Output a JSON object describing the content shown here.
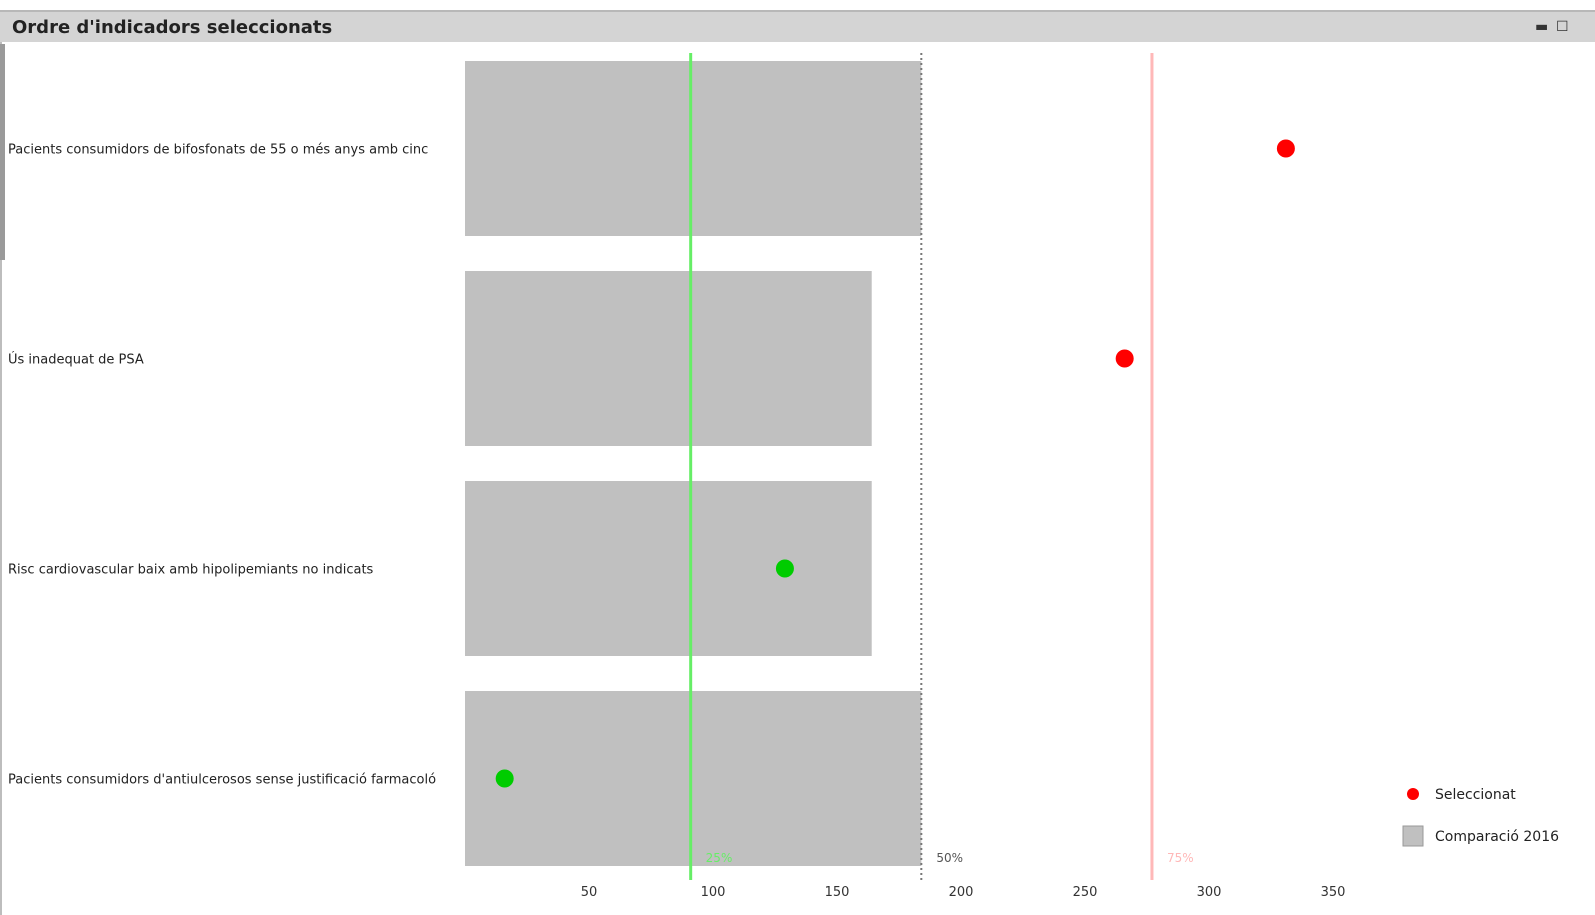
{
  "window": {
    "title": "Ordre d'indicadors seleccionats",
    "minimize_icon": "minimize-icon",
    "maximize_icon": "maximize-icon"
  },
  "chart_data": {
    "type": "bar",
    "orientation": "horizontal",
    "title": "",
    "xlabel": "",
    "ylabel": "",
    "xlim": [
      0,
      400
    ],
    "xticks": [
      50,
      100,
      150,
      200,
      250,
      300,
      350
    ],
    "grid": false,
    "legend_position": "bottom-right",
    "categories": [
      "Pacients consumidors de bifosfonats de 55 o més anys amb cinc",
      "Ús inadequat de PSA",
      "Risc cardiovascular baix amb hipolipemiants no indicats",
      "Pacients consumidors d'antiulcerosos sense justificació farmacoló"
    ],
    "series": [
      {
        "name": "Comparació 2016",
        "kind": "bar",
        "color": "#c0c0c0",
        "values": [
          184,
          164,
          164,
          184
        ]
      },
      {
        "name": "Seleccionat",
        "kind": "point",
        "values": [
          331,
          266,
          129,
          16
        ],
        "colors": [
          "#ff0000",
          "#ff0000",
          "#00cc00",
          "#00cc00"
        ]
      }
    ],
    "reference_lines": [
      {
        "label": "25%",
        "value": 91,
        "color": "#66ee66",
        "style": "solid"
      },
      {
        "label": "50%",
        "value": 184,
        "color": "#777777",
        "style": "dotted"
      },
      {
        "label": "75%",
        "value": 277,
        "color": "#ffb8b8",
        "style": "solid"
      }
    ]
  }
}
